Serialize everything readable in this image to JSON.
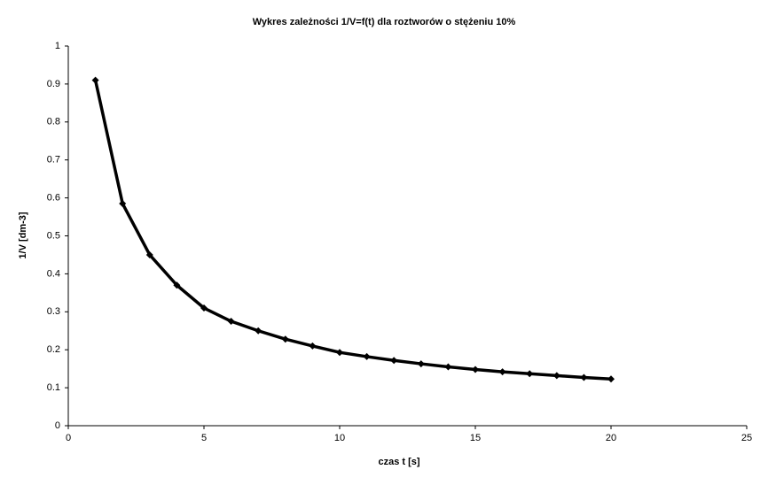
{
  "chart_data": {
    "type": "line",
    "title": "Wykres zależności 1/V=f(t) dla roztworów o stężeniu 10%",
    "x_label": "czas t [s]",
    "y_label": "1/V [dm-3]",
    "x": [
      1,
      2,
      3,
      4,
      5,
      6,
      7,
      8,
      9,
      10,
      11,
      12,
      13,
      14,
      15,
      16,
      17,
      18,
      19,
      20
    ],
    "series": [
      {
        "name": "1/V",
        "color": "#000000",
        "values": [
          0.91,
          0.585,
          0.45,
          0.37,
          0.31,
          0.275,
          0.25,
          0.228,
          0.21,
          0.193,
          0.182,
          0.172,
          0.163,
          0.155,
          0.148,
          0.142,
          0.137,
          0.132,
          0.127,
          0.123
        ]
      }
    ],
    "xlim": [
      0,
      25
    ],
    "xticks": [
      0,
      5,
      10,
      15,
      20,
      25
    ],
    "ylim": [
      0,
      1
    ],
    "yticks": [
      0,
      0.1,
      0.2,
      0.3,
      0.4,
      0.5,
      0.6,
      0.7,
      0.8,
      0.9,
      1
    ],
    "grid": false
  }
}
